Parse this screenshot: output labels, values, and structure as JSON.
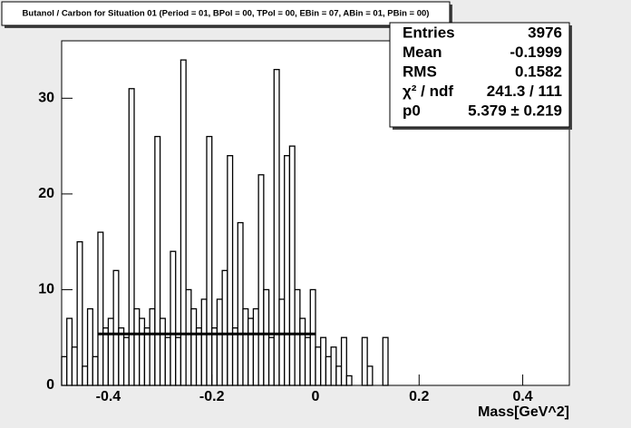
{
  "chart_data": {
    "type": "histogram",
    "title": "Butanol / Carbon for Situation 01 (Period = 01, BPol = 00, TPol = 00, EBin = 07, ABin = 01, PBin = 00)",
    "x_label": "Mass[GeV^2]",
    "xlim": [
      -0.49,
      0.49
    ],
    "ylim": [
      0,
      36
    ],
    "xticks": [
      -0.4,
      -0.2,
      0,
      0.2,
      0.4
    ],
    "yticks": [
      0,
      10,
      20,
      30
    ],
    "color": "#000000",
    "bins": [
      -0.49,
      -0.48,
      -0.47,
      -0.46,
      -0.45,
      -0.44,
      -0.43,
      -0.42,
      -0.41,
      -0.4,
      -0.39,
      -0.38,
      -0.37,
      -0.36,
      -0.35,
      -0.34,
      -0.33,
      -0.32,
      -0.31,
      -0.3,
      -0.29,
      -0.28,
      -0.27,
      -0.26,
      -0.25,
      -0.24,
      -0.23,
      -0.22,
      -0.21,
      -0.2,
      -0.19,
      -0.18,
      -0.17,
      -0.16,
      -0.15,
      -0.14,
      -0.13,
      -0.12,
      -0.11,
      -0.1,
      -0.09,
      -0.08,
      -0.07,
      -0.06,
      -0.05,
      -0.04,
      -0.03,
      -0.02,
      -0.01,
      0.0,
      0.01,
      0.02,
      0.03,
      0.04,
      0.05,
      0.06,
      0.07,
      0.08,
      0.09,
      0.1,
      0.11,
      0.12,
      0.13,
      0.14,
      0.15
    ],
    "values": [
      3,
      7,
      4,
      15,
      2,
      8,
      3,
      16,
      6,
      7,
      12,
      6,
      5,
      31,
      8,
      7,
      6,
      8,
      26,
      7,
      5,
      14,
      5,
      34,
      10,
      8,
      6,
      9,
      26,
      6,
      9,
      12,
      24,
      6,
      17,
      8,
      7,
      8,
      22,
      10,
      5,
      33,
      9,
      24,
      25,
      10,
      7,
      5,
      10,
      4,
      5,
      3,
      4,
      2,
      5,
      1,
      0,
      0,
      5,
      2,
      0,
      0,
      5,
      0
    ],
    "fit_range": [
      -0.42,
      0
    ],
    "stats": [
      {
        "label": "Entries",
        "value": 3976
      },
      {
        "label": "Mean",
        "value": -0.1999
      },
      {
        "label": "RMS",
        "value": 0.1582
      },
      {
        "label": "χ² / ndf",
        "value_label": "241.3 / 111"
      },
      {
        "label": "p0",
        "value": 5.379,
        "error": 0.219,
        "value_label": "5.379 ± 0.219"
      }
    ]
  }
}
